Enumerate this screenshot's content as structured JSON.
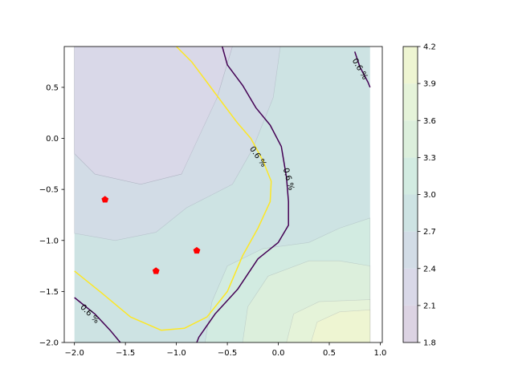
{
  "chart_data": {
    "type": "contourf",
    "title": "",
    "xlabel": "",
    "ylabel": "",
    "xlim": [
      -2.1,
      1.02
    ],
    "ylim": [
      -2.0,
      0.9
    ],
    "grid": false,
    "x_ticks": [
      -2.0,
      -1.5,
      -1.0,
      -0.5,
      0.0,
      0.5,
      1.0
    ],
    "x_tick_labels": [
      "−2.0",
      "−1.5",
      "−1.0",
      "−0.5",
      "0.0",
      "0.5",
      "1.0"
    ],
    "y_ticks": [
      -2.0,
      -1.5,
      -1.0,
      -0.5,
      0.0,
      0.5
    ],
    "y_tick_labels": [
      "−2.0",
      "−1.5",
      "−1.0",
      "−0.5",
      "0.0",
      "0.5"
    ],
    "colorbar": {
      "levels": [
        1.8,
        2.1,
        2.4,
        2.7,
        3.0,
        3.3,
        3.6,
        3.9,
        4.2
      ],
      "tick_labels": [
        "1.8",
        "2.1",
        "2.4",
        "2.7",
        "3.0",
        "3.3",
        "3.6",
        "3.9",
        "4.2"
      ],
      "band_colors": [
        "#dcd3e3",
        "#d9d8e8",
        "#d2dce6",
        "#cde3e3",
        "#d2ebe1",
        "#dcefdc",
        "#e5f3d9",
        "#eef5d2",
        "#f6f7d1"
      ]
    },
    "regions": [
      {
        "level_band": [
          1.8,
          2.1
        ],
        "points": [
          [
            -1.38,
            0.65
          ],
          [
            -1.15,
            0.58
          ],
          [
            -0.95,
            0.48
          ],
          [
            -0.95,
            0.25
          ],
          [
            -1.1,
            0.15
          ],
          [
            -1.28,
            0.28
          ],
          [
            -1.38,
            0.48
          ]
        ]
      },
      {
        "level_band": [
          2.1,
          2.4
        ],
        "points": [
          [
            -1.95,
            0.9
          ],
          [
            -0.45,
            0.9
          ],
          [
            -0.6,
            0.4
          ],
          [
            -0.7,
            0.1
          ],
          [
            -0.95,
            -0.35
          ],
          [
            -1.35,
            -0.45
          ],
          [
            -1.8,
            -0.35
          ],
          [
            -2.0,
            -0.15
          ],
          [
            -2.0,
            0.9
          ]
        ]
      },
      {
        "level_band": [
          2.4,
          2.7
        ],
        "points": [
          [
            -2.0,
            0.9
          ],
          [
            -2.0,
            -0.93
          ],
          [
            -1.6,
            -1.0
          ],
          [
            -1.2,
            -0.92
          ],
          [
            -0.9,
            -0.68
          ],
          [
            -0.45,
            -0.45
          ],
          [
            -0.25,
            -0.1
          ],
          [
            -0.05,
            0.4
          ],
          [
            0.02,
            0.9
          ],
          [
            -0.45,
            0.9
          ],
          [
            -0.6,
            0.4
          ],
          [
            -0.95,
            -0.35
          ],
          [
            -1.35,
            -0.45
          ],
          [
            -1.8,
            -0.35
          ],
          [
            -2.0,
            -0.15
          ]
        ]
      },
      {
        "level_band": [
          3.0,
          3.3
        ],
        "points": [
          [
            -0.72,
            -2.0
          ],
          [
            -0.65,
            -1.6
          ],
          [
            -0.5,
            -1.25
          ],
          [
            -0.15,
            -1.08
          ],
          [
            0.3,
            -1.02
          ],
          [
            0.6,
            -0.88
          ],
          [
            0.9,
            -0.78
          ],
          [
            0.9,
            -2.0
          ]
        ]
      },
      {
        "level_band": [
          3.3,
          3.6
        ],
        "points": [
          [
            -0.35,
            -2.0
          ],
          [
            -0.3,
            -1.65
          ],
          [
            -0.1,
            -1.35
          ],
          [
            0.3,
            -1.2
          ],
          [
            0.6,
            -1.2
          ],
          [
            0.9,
            -1.25
          ],
          [
            0.9,
            -2.0
          ]
        ]
      },
      {
        "level_band": [
          3.6,
          3.9
        ],
        "points": [
          [
            0.08,
            -2.0
          ],
          [
            0.15,
            -1.72
          ],
          [
            0.4,
            -1.6
          ],
          [
            0.9,
            -1.58
          ],
          [
            0.9,
            -2.0
          ]
        ]
      },
      {
        "level_band": [
          3.9,
          4.2
        ],
        "points": [
          [
            0.32,
            -2.0
          ],
          [
            0.38,
            -1.8
          ],
          [
            0.6,
            -1.7
          ],
          [
            0.9,
            -1.68
          ],
          [
            0.9,
            -2.0
          ]
        ]
      }
    ],
    "contour_lines": [
      {
        "level": "0.6 %",
        "color": "#440154",
        "points": [
          [
            -0.55,
            0.9
          ],
          [
            -0.5,
            0.72
          ],
          [
            -0.35,
            0.52
          ],
          [
            -0.22,
            0.3
          ],
          [
            -0.08,
            0.13
          ],
          [
            0.03,
            -0.08
          ],
          [
            0.08,
            -0.38
          ],
          [
            0.1,
            -0.62
          ],
          [
            0.1,
            -0.85
          ],
          [
            0.0,
            -1.02
          ],
          [
            -0.2,
            -1.18
          ],
          [
            -0.4,
            -1.48
          ],
          [
            -0.62,
            -1.72
          ],
          [
            -0.78,
            -1.95
          ],
          [
            -0.8,
            -2.0
          ]
        ]
      },
      {
        "level": "0.6 %",
        "color": "#440154",
        "points": [
          [
            -2.0,
            -1.56
          ],
          [
            -1.8,
            -1.72
          ],
          [
            -1.65,
            -1.88
          ],
          [
            -1.55,
            -2.0
          ]
        ]
      },
      {
        "level": "0.6 %",
        "color": "#440154",
        "points": [
          [
            0.75,
            0.85
          ],
          [
            0.8,
            0.7
          ],
          [
            0.88,
            0.55
          ],
          [
            0.9,
            0.5
          ]
        ]
      },
      {
        "level": "0.6 %",
        "color": "#fde725",
        "points": [
          [
            -1.0,
            0.9
          ],
          [
            -0.85,
            0.75
          ],
          [
            -0.7,
            0.55
          ],
          [
            -0.55,
            0.35
          ],
          [
            -0.4,
            0.15
          ],
          [
            -0.27,
            0.0
          ],
          [
            -0.15,
            -0.22
          ],
          [
            -0.07,
            -0.42
          ],
          [
            -0.08,
            -0.62
          ],
          [
            -0.2,
            -0.88
          ],
          [
            -0.35,
            -1.15
          ],
          [
            -0.5,
            -1.5
          ],
          [
            -0.7,
            -1.75
          ],
          [
            -0.92,
            -1.86
          ],
          [
            -1.15,
            -1.88
          ],
          [
            -1.45,
            -1.75
          ],
          [
            -1.75,
            -1.5
          ],
          [
            -2.0,
            -1.3
          ]
        ]
      }
    ],
    "line_labels": [
      {
        "text": "0.6 %",
        "x": -1.85,
        "y": -1.72,
        "color": "#440154",
        "rotation": 45
      },
      {
        "text": "0.6 %",
        "x": 0.1,
        "y": -0.4,
        "color": "#440154",
        "rotation": 75
      },
      {
        "text": "0.6 %",
        "x": 0.8,
        "y": 0.68,
        "color": "#440154",
        "rotation": 60
      },
      {
        "text": "0.6 %",
        "x": -0.2,
        "y": -0.18,
        "color": "#fde725",
        "rotation": 55
      }
    ],
    "markers": [
      {
        "x": -1.7,
        "y": -0.6,
        "color": "#ff0000"
      },
      {
        "x": -1.2,
        "y": -1.3,
        "color": "#ff0000"
      },
      {
        "x": -0.8,
        "y": -1.1,
        "color": "#ff0000"
      }
    ]
  }
}
